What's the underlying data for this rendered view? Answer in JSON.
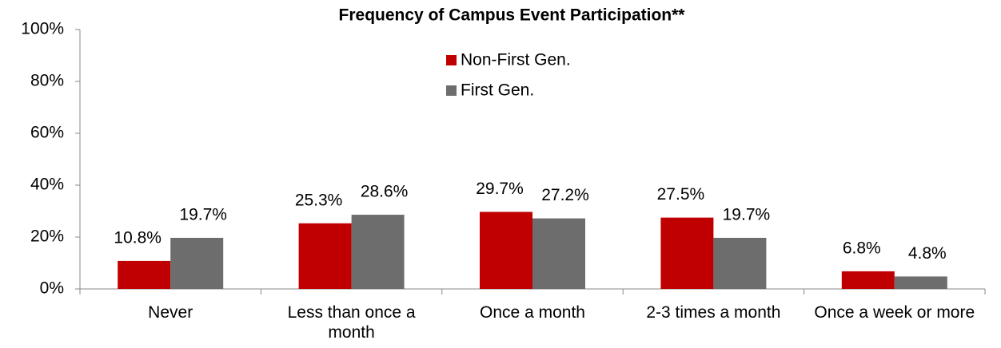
{
  "chart_data": {
    "type": "bar",
    "title": "Frequency of Campus Event Participation**",
    "categories": [
      "Never",
      "Less than once a month",
      "Once a month",
      "2-3 times a month",
      "Once a week or more"
    ],
    "series": [
      {
        "name": "Non-First Gen.",
        "color": "#c00000",
        "values": [
          10.8,
          25.3,
          29.7,
          27.5,
          6.8
        ],
        "value_labels": [
          "10.8%",
          "25.3%",
          "29.7%",
          "27.5%",
          "6.8%"
        ]
      },
      {
        "name": "First Gen.",
        "color": "#6d6d6d",
        "values": [
          19.7,
          28.6,
          27.2,
          19.7,
          4.8
        ],
        "value_labels": [
          "19.7%",
          "28.6%",
          "27.2%",
          "19.7%",
          "4.8%"
        ]
      }
    ],
    "ylim": [
      0,
      100
    ],
    "yticks": [
      {
        "value": 0,
        "label": "0%"
      },
      {
        "value": 20,
        "label": "20%"
      },
      {
        "value": 40,
        "label": "40%"
      },
      {
        "value": 60,
        "label": "60%"
      },
      {
        "value": 80,
        "label": "80%"
      },
      {
        "value": 100,
        "label": "100%"
      }
    ],
    "grid": false,
    "legend": "top"
  }
}
